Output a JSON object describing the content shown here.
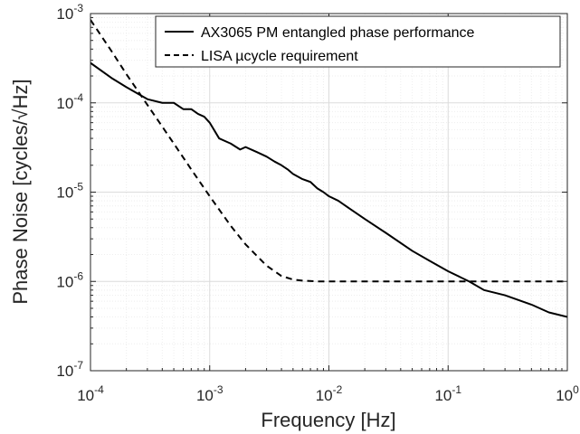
{
  "chart_data": {
    "type": "line",
    "xlabel": "Frequency [Hz]",
    "ylabel": "Phase Noise [cycles/√Hz]",
    "xscale": "log",
    "yscale": "log",
    "xlim": [
      0.0001,
      1
    ],
    "ylim": [
      1e-07,
      0.001
    ],
    "grid": true,
    "legend_position": "top-right",
    "x_tick_labels": [
      {
        "base": "10",
        "exp": "-4"
      },
      {
        "base": "10",
        "exp": "-3"
      },
      {
        "base": "10",
        "exp": "-2"
      },
      {
        "base": "10",
        "exp": "-1"
      },
      {
        "base": "10",
        "exp": "0"
      }
    ],
    "y_tick_labels": [
      {
        "base": "10",
        "exp": "-7"
      },
      {
        "base": "10",
        "exp": "-6"
      },
      {
        "base": "10",
        "exp": "-5"
      },
      {
        "base": "10",
        "exp": "-4"
      },
      {
        "base": "10",
        "exp": "-3"
      }
    ],
    "series": [
      {
        "name": "AX3065 PM entangled phase performance",
        "style": "solid",
        "color": "#000000",
        "x": [
          0.0001,
          0.00015,
          0.0002,
          0.0003,
          0.0004,
          0.0005,
          0.0006,
          0.0007,
          0.0008,
          0.0009,
          0.001,
          0.0012,
          0.0015,
          0.0018,
          0.002,
          0.0025,
          0.003,
          0.0035,
          0.004,
          0.0045,
          0.005,
          0.006,
          0.007,
          0.008,
          0.009,
          0.01,
          0.012,
          0.015,
          0.02,
          0.03,
          0.05,
          0.07,
          0.1,
          0.15,
          0.2,
          0.3,
          0.5,
          0.7,
          1.0
        ],
        "y": [
          0.00028,
          0.00019,
          0.00015,
          0.00011,
          0.0001,
          0.0001,
          8.5e-05,
          8.5e-05,
          7.5e-05,
          7e-05,
          6e-05,
          4e-05,
          3.5e-05,
          3e-05,
          3.2e-05,
          2.8e-05,
          2.5e-05,
          2.2e-05,
          2e-05,
          1.8e-05,
          1.6e-05,
          1.4e-05,
          1.3e-05,
          1.1e-05,
          1e-05,
          9e-06,
          8e-06,
          6.5e-06,
          5e-06,
          3.5e-06,
          2.2e-06,
          1.7e-06,
          1.3e-06,
          1e-06,
          8e-07,
          7e-07,
          5.5e-07,
          4.5e-07,
          4e-07
        ]
      },
      {
        "name": "LISA µcycle requirement",
        "style": "dashed",
        "color": "#000000",
        "x": [
          0.0001,
          0.00015,
          0.0002,
          0.0003,
          0.0005,
          0.0007,
          0.001,
          0.0015,
          0.002,
          0.003,
          0.004,
          0.005,
          0.006,
          0.008,
          0.01,
          0.02,
          0.05,
          0.1,
          0.2,
          0.5,
          1.0
        ],
        "y": [
          0.00085,
          0.00038,
          0.00021,
          9.5e-05,
          3.5e-05,
          1.8e-05,
          9e-06,
          4.2e-06,
          2.6e-06,
          1.5e-06,
          1.15e-06,
          1.05e-06,
          1.02e-06,
          1e-06,
          1e-06,
          1e-06,
          1e-06,
          1e-06,
          1e-06,
          1e-06,
          1e-06
        ]
      }
    ]
  }
}
